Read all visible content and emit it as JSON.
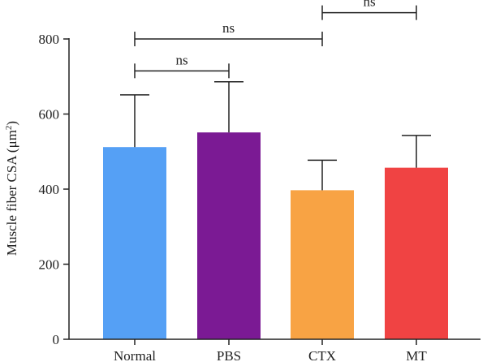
{
  "chart_data": {
    "type": "bar",
    "categories": [
      "Normal",
      "PBS",
      "CTX",
      "MT"
    ],
    "values": [
      512,
      551,
      397,
      457
    ],
    "error_upper": [
      651,
      686,
      477,
      543
    ],
    "colors": [
      "#55a0f5",
      "#7b1a94",
      "#f8a344",
      "#f04343"
    ],
    "ylabel_main": "Muscle fiber CSA (μm",
    "ylabel_sup": "2",
    "ylabel_close": ")",
    "ylim": [
      0,
      800
    ],
    "yticks": [
      "0",
      "200",
      "400",
      "600",
      "800"
    ],
    "grid": false,
    "significance": [
      {
        "from": "Normal",
        "to": "PBS",
        "label": "ns",
        "y": 715
      },
      {
        "from": "Normal",
        "to": "CTX",
        "label": "ns",
        "y": 800
      },
      {
        "from": "CTX",
        "to": "MT",
        "label": "ns",
        "y": 870
      }
    ]
  }
}
